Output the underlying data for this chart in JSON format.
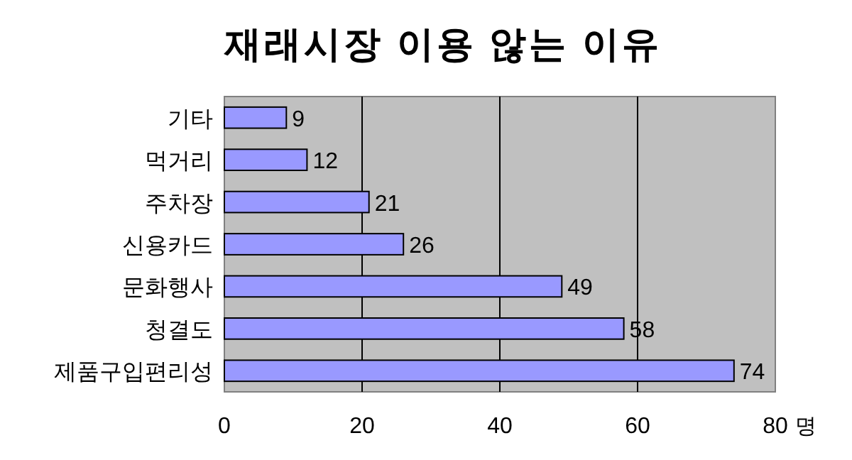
{
  "chart_data": {
    "type": "bar",
    "orientation": "horizontal",
    "title": "재래시장 이용 않는 이유",
    "xlabel": "명",
    "categories": [
      "기타",
      "먹거리",
      "주차장",
      "신용카드",
      "문화행사",
      "청결도",
      "제품구입편리성"
    ],
    "values": [
      9,
      12,
      21,
      26,
      49,
      58,
      74
    ],
    "color": "#9999ff",
    "xlim": [
      0,
      80
    ],
    "xticks": [
      0,
      20,
      40,
      60,
      80
    ],
    "grid": "x",
    "data_labels": true
  }
}
